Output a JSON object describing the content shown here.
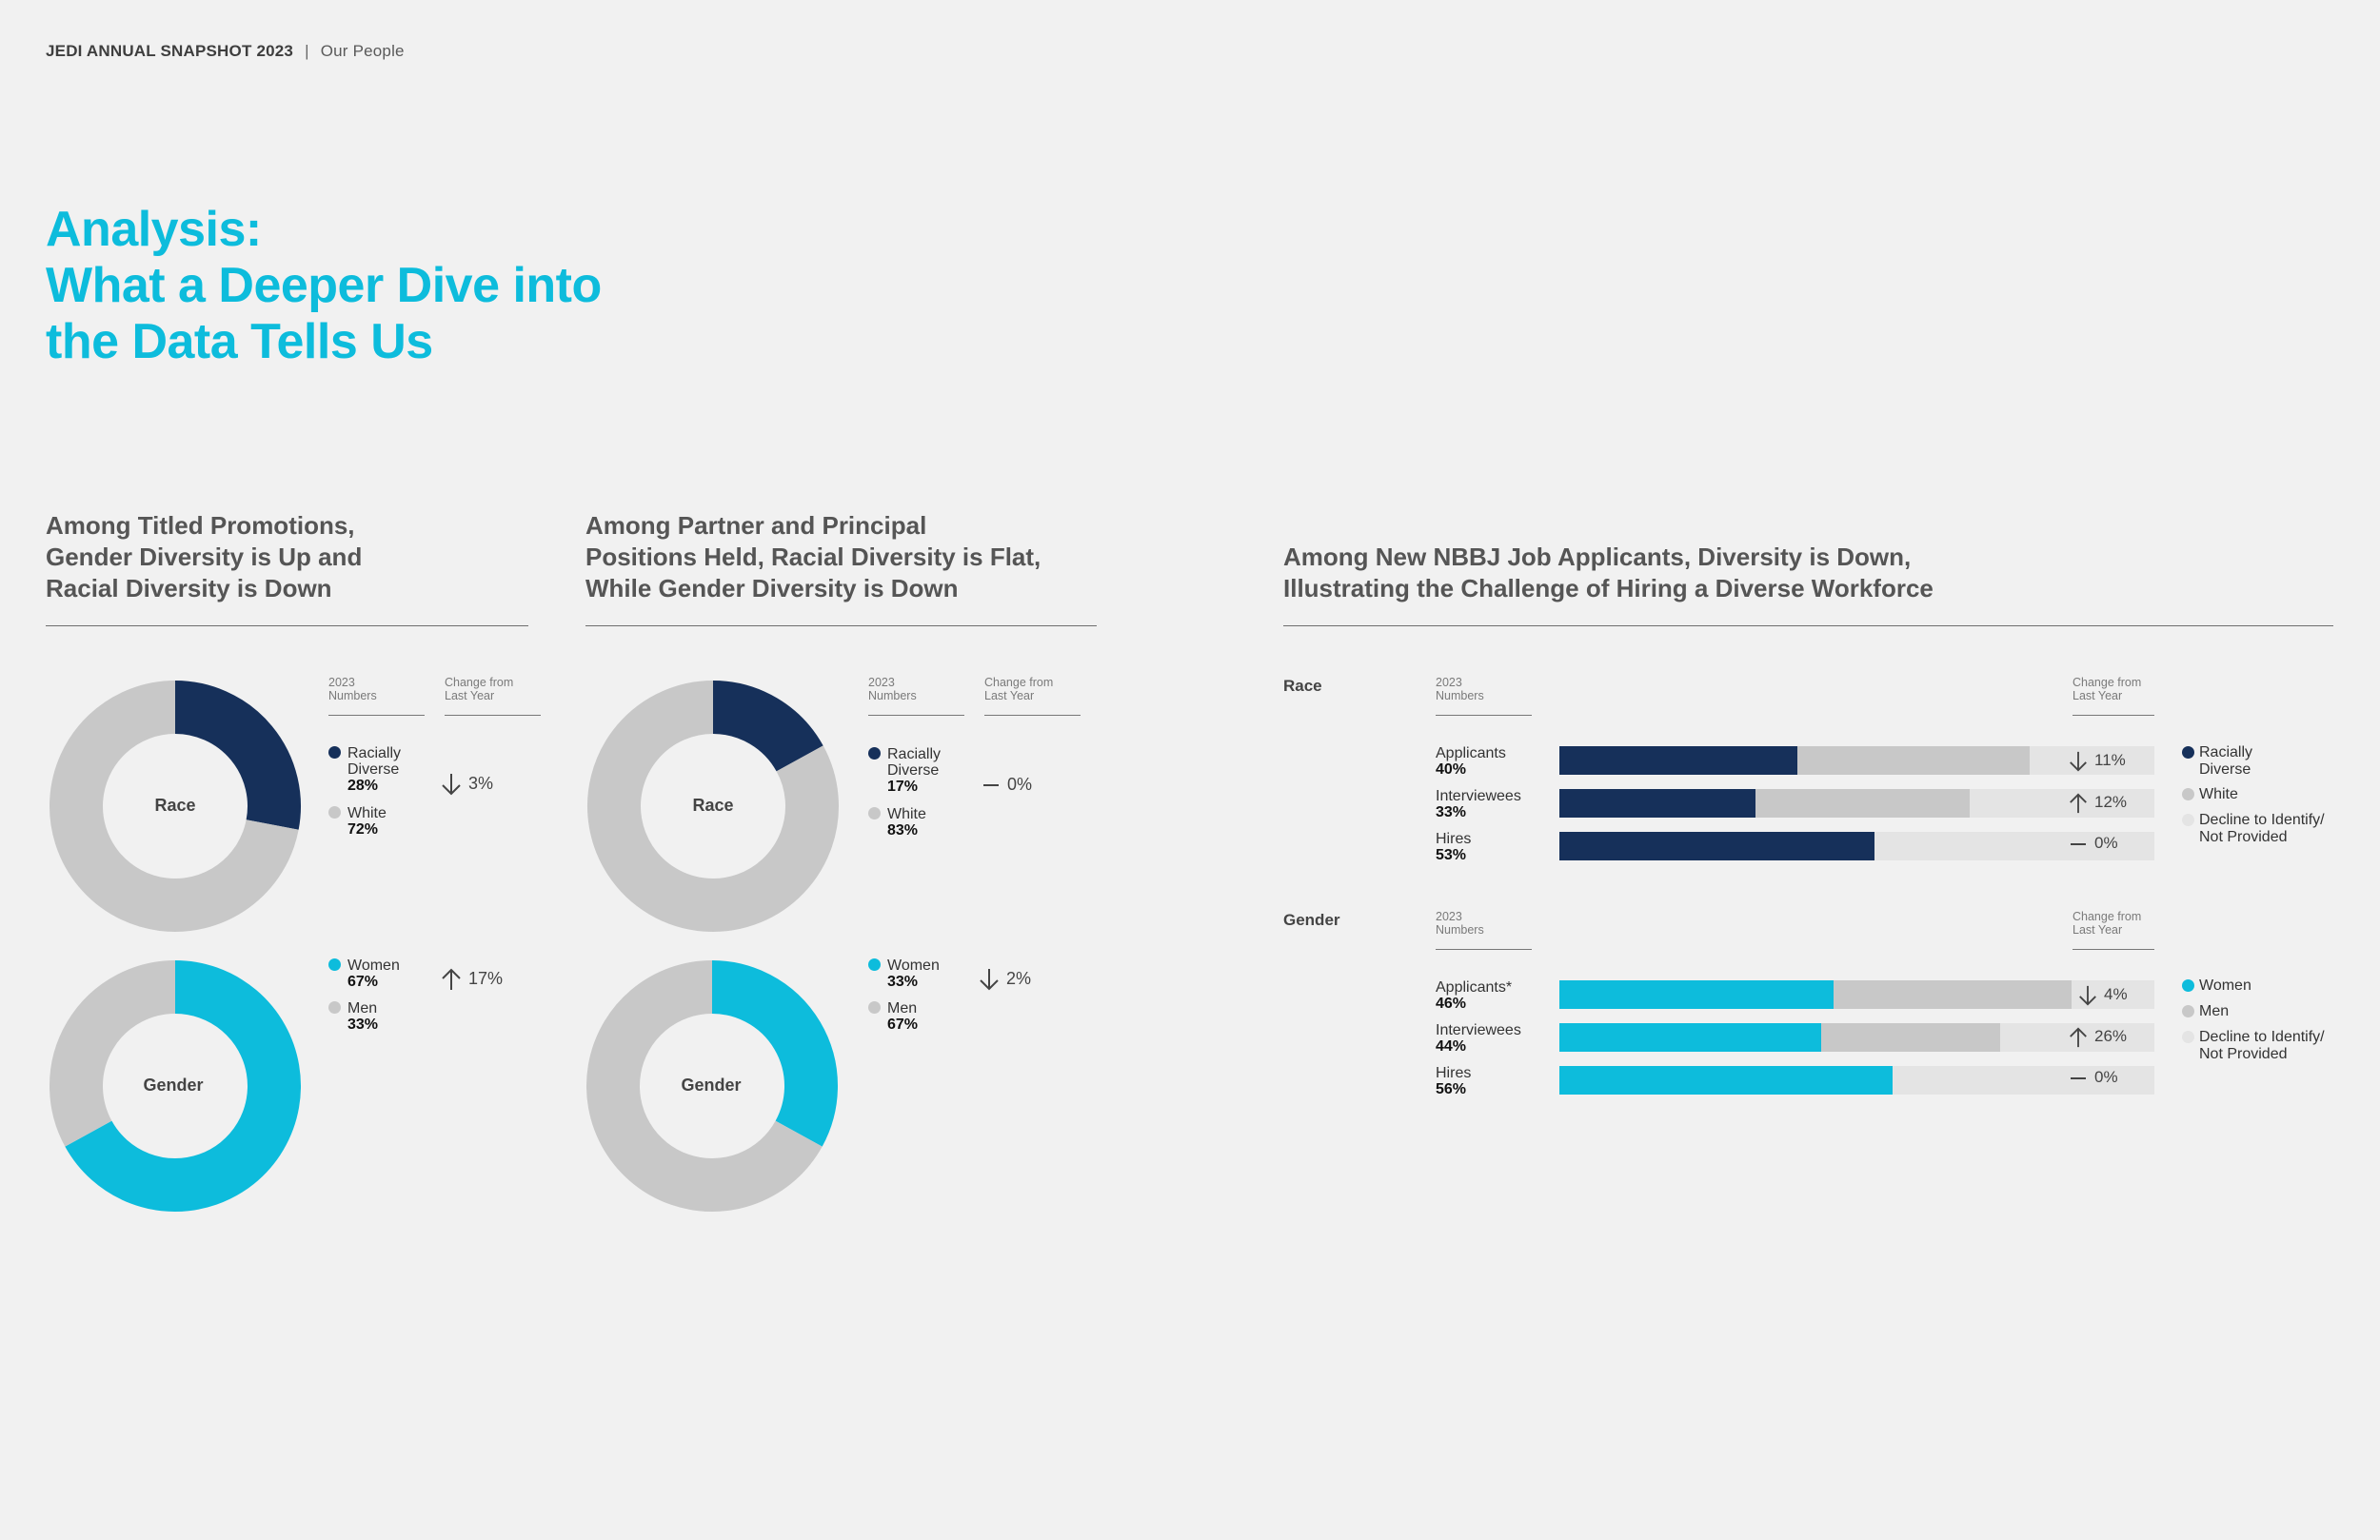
{
  "header": {
    "report": "JEDI ANNUAL SNAPSHOT 2023",
    "separator": "|",
    "section": "Our People"
  },
  "page_title": {
    "line1": "Analysis:",
    "line2": "What a Deeper Dive into",
    "line3": "the Data Tells Us"
  },
  "colors": {
    "navy": "#16305a",
    "cyan": "#0dbcdc",
    "gray": "#c8c8c8",
    "light": "#e4e4e4"
  },
  "panel1": {
    "title": [
      "Among Titled Promotions,",
      "Gender Diversity is Up and",
      "Racial Diversity is Down"
    ],
    "col_numbers": [
      "2023",
      "Numbers"
    ],
    "col_change": [
      "Change from",
      "Last Year"
    ],
    "race": {
      "label": "Race",
      "items": [
        {
          "name": [
            "Racially",
            "Diverse"
          ],
          "pct": "28%",
          "color": "navy"
        },
        {
          "name": [
            "White"
          ],
          "pct": "72%",
          "color": "gray"
        }
      ],
      "change": {
        "dir": "down",
        "text": "3%"
      }
    },
    "gender": {
      "label": "Gender",
      "items": [
        {
          "name": [
            "Women"
          ],
          "pct": "67%",
          "color": "cyan"
        },
        {
          "name": [
            "Men"
          ],
          "pct": "33%",
          "color": "gray"
        }
      ],
      "change": {
        "dir": "up",
        "text": "17%"
      }
    }
  },
  "panel2": {
    "title": [
      "Among Partner and Principal",
      "Positions Held, Racial Diversity is Flat,",
      "While Gender Diversity is Down"
    ],
    "col_numbers": [
      "2023",
      "Numbers"
    ],
    "col_change": [
      "Change from",
      "Last Year"
    ],
    "race": {
      "label": "Race",
      "items": [
        {
          "name": [
            "Racially",
            "Diverse"
          ],
          "pct": "17%",
          "color": "navy"
        },
        {
          "name": [
            "White"
          ],
          "pct": "83%",
          "color": "gray"
        }
      ],
      "change": {
        "dir": "flat",
        "text": "0%"
      }
    },
    "gender": {
      "label": "Gender",
      "items": [
        {
          "name": [
            "Women"
          ],
          "pct": "33%",
          "color": "cyan"
        },
        {
          "name": [
            "Men"
          ],
          "pct": "67%",
          "color": "gray"
        }
      ],
      "change": {
        "dir": "down",
        "text": "2%"
      }
    }
  },
  "panel3": {
    "title": [
      "Among New NBBJ Job Applicants, Diversity  is Down,",
      "Illustrating the Challenge of Hiring a Diverse Workforce"
    ],
    "race": {
      "section": "Race",
      "col_numbers": [
        "2023",
        "Numbers"
      ],
      "col_change": [
        "Change from",
        "Last Year"
      ],
      "rows": [
        {
          "label": "Applicants",
          "pct": "40%",
          "change_dir": "down",
          "change": "11%"
        },
        {
          "label": "Interviewees",
          "pct": "33%",
          "change_dir": "up",
          "change": "12%"
        },
        {
          "label": "Hires",
          "pct": "53%",
          "change_dir": "flat",
          "change": "0%"
        }
      ],
      "legend": [
        [
          "Racially",
          "Diverse"
        ],
        [
          "White"
        ],
        [
          "Decline to Identify/",
          "Not Provided"
        ]
      ]
    },
    "gender": {
      "section": "Gender",
      "col_numbers": [
        "2023",
        "Numbers"
      ],
      "col_change": [
        "Change from",
        "Last Year"
      ],
      "rows": [
        {
          "label": "Applicants*",
          "pct": "46%",
          "change_dir": "down",
          "change": "4%"
        },
        {
          "label": "Interviewees",
          "pct": "44%",
          "change_dir": "up",
          "change": "26%"
        },
        {
          "label": "Hires",
          "pct": "56%",
          "change_dir": "flat",
          "change": "0%"
        }
      ],
      "legend": [
        [
          "Women"
        ],
        [
          "Men"
        ],
        [
          "Decline to Identify/",
          "Not Provided"
        ]
      ]
    }
  },
  "chart_data": [
    {
      "type": "pie",
      "title": "Titled Promotions — Race",
      "labels": [
        "Racially Diverse",
        "White"
      ],
      "values": [
        28,
        72
      ],
      "change_from_last_year": "down 3%"
    },
    {
      "type": "pie",
      "title": "Titled Promotions — Gender",
      "labels": [
        "Women",
        "Men"
      ],
      "values": [
        67,
        33
      ],
      "change_from_last_year": "up 17%"
    },
    {
      "type": "pie",
      "title": "Partner and Principal — Race",
      "labels": [
        "Racially Diverse",
        "White"
      ],
      "values": [
        17,
        83
      ],
      "change_from_last_year": "0%"
    },
    {
      "type": "pie",
      "title": "Partner and Principal — Gender",
      "labels": [
        "Women",
        "Men"
      ],
      "values": [
        33,
        67
      ],
      "change_from_last_year": "down 2%"
    },
    {
      "type": "bar",
      "orientation": "horizontal",
      "stacked": true,
      "title": "New Job Applicants — Race",
      "categories": [
        "Applicants",
        "Interviewees",
        "Hires"
      ],
      "series": [
        {
          "name": "Racially Diverse",
          "values": [
            40,
            33,
            53
          ]
        },
        {
          "name": "White",
          "values": [
            39,
            36,
            0
          ]
        },
        {
          "name": "Decline to Identify/Not Provided",
          "values": [
            21,
            31,
            47
          ]
        }
      ],
      "change_from_last_year": [
        "down 11%",
        "up 12%",
        "0%"
      ],
      "xlim": [
        0,
        100
      ]
    },
    {
      "type": "bar",
      "orientation": "horizontal",
      "stacked": true,
      "title": "New Job Applicants — Gender",
      "categories": [
        "Applicants*",
        "Interviewees",
        "Hires"
      ],
      "series": [
        {
          "name": "Women",
          "values": [
            46,
            44,
            56
          ]
        },
        {
          "name": "Men",
          "values": [
            40,
            30,
            0
          ]
        },
        {
          "name": "Decline to Identify/Not Provided",
          "values": [
            14,
            26,
            44
          ]
        }
      ],
      "change_from_last_year": [
        "down 4%",
        "up 26%",
        "0%"
      ],
      "xlim": [
        0,
        100
      ]
    }
  ]
}
